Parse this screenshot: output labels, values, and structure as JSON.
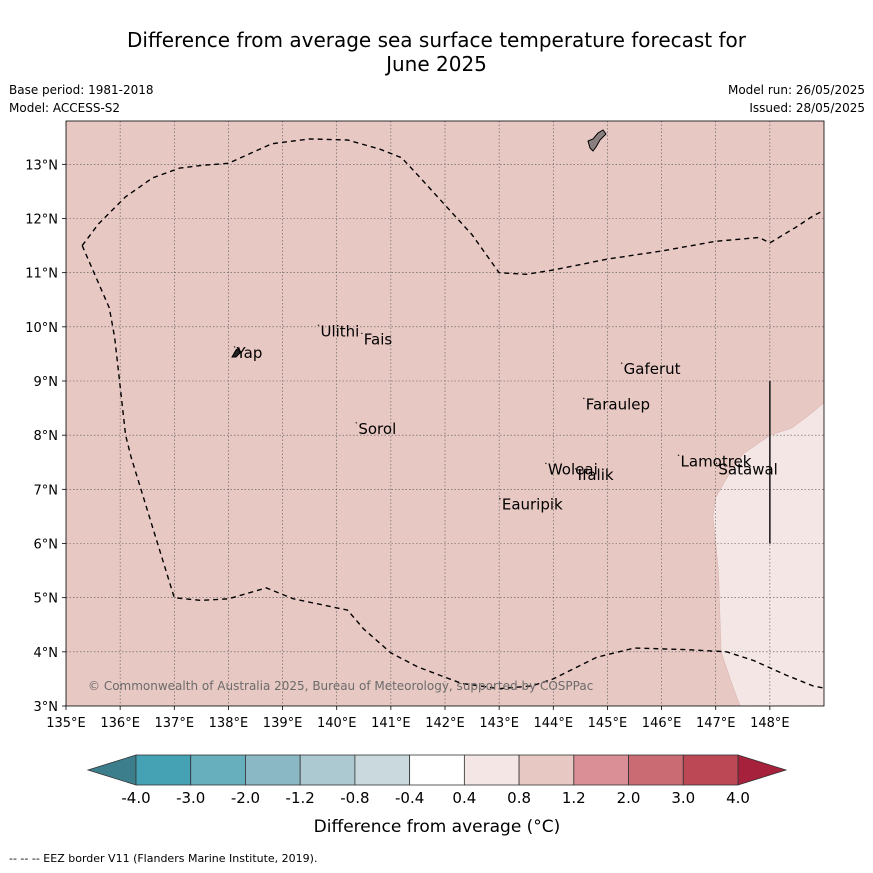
{
  "title_line1": "Difference from average sea surface temperature forecast for",
  "title_line2": "June 2025",
  "base_period": "Base period: 1981-2018",
  "model": "Model: ACCESS-S2",
  "model_run": "Model run: 26/05/2025",
  "issued": "Issued: 28/05/2025",
  "copyright": "© Commonwealth of Australia 2025, Bureau of Meteorology, supported by COSPPac",
  "footnote": "--  --  -- EEZ border V11 (Flanders Marine Institute, 2019).",
  "lon_ticks": [
    {
      "value": 135,
      "label": "135°E"
    },
    {
      "value": 136,
      "label": "136°E"
    },
    {
      "value": 137,
      "label": "137°E"
    },
    {
      "value": 138,
      "label": "138°E"
    },
    {
      "value": 139,
      "label": "139°E"
    },
    {
      "value": 140,
      "label": "140°E"
    },
    {
      "value": 141,
      "label": "141°E"
    },
    {
      "value": 142,
      "label": "142°E"
    },
    {
      "value": 143,
      "label": "143°E"
    },
    {
      "value": 144,
      "label": "144°E"
    },
    {
      "value": 145,
      "label": "145°E"
    },
    {
      "value": 146,
      "label": "146°E"
    },
    {
      "value": 147,
      "label": "147°E"
    },
    {
      "value": 148,
      "label": "148°E"
    }
  ],
  "lat_ticks": [
    {
      "value": 3,
      "label": "3°N"
    },
    {
      "value": 4,
      "label": "4°N"
    },
    {
      "value": 5,
      "label": "5°N"
    },
    {
      "value": 6,
      "label": "6°N"
    },
    {
      "value": 7,
      "label": "7°N"
    },
    {
      "value": 8,
      "label": "8°N"
    },
    {
      "value": 9,
      "label": "9°N"
    },
    {
      "value": 10,
      "label": "10°N"
    },
    {
      "value": 11,
      "label": "11°N"
    },
    {
      "value": 12,
      "label": "12°N"
    },
    {
      "value": 13,
      "label": "13°N"
    }
  ],
  "extent": {
    "lon_min": 135,
    "lon_max": 149,
    "lat_min": 3,
    "lat_max": 13.8
  },
  "colors": {
    "background_anomaly": "#e8c8c3",
    "east_anomaly": "#f4e6e4",
    "land": "#8a7f7f",
    "eez_line": "#000000",
    "grid": "#555555"
  },
  "islands": [
    {
      "name": "Yap",
      "lon": 138.15,
      "lat": 9.5
    },
    {
      "name": "Ulithi",
      "lon": 139.7,
      "lat": 9.9
    },
    {
      "name": "Fais",
      "lon": 140.5,
      "lat": 9.75
    },
    {
      "name": "Gaferut",
      "lon": 145.3,
      "lat": 9.2
    },
    {
      "name": "Faraulep",
      "lon": 144.6,
      "lat": 8.55
    },
    {
      "name": "Sorol",
      "lon": 140.4,
      "lat": 8.1
    },
    {
      "name": "Woleai",
      "lon": 143.9,
      "lat": 7.35
    },
    {
      "name": "Ifalik",
      "lon": 144.45,
      "lat": 7.25
    },
    {
      "name": "Lamotrek",
      "lon": 146.35,
      "lat": 7.5
    },
    {
      "name": "Satawal",
      "lon": 147.05,
      "lat": 7.35
    },
    {
      "name": "Eauripik",
      "lon": 143.05,
      "lat": 6.7
    }
  ],
  "eez_north": [
    [
      135.3,
      11.5
    ],
    [
      135.6,
      11.9
    ],
    [
      136.1,
      12.4
    ],
    [
      136.6,
      12.75
    ],
    [
      137.1,
      12.93
    ],
    [
      137.5,
      12.98
    ],
    [
      138.0,
      13.02
    ],
    [
      138.8,
      13.38
    ],
    [
      139.5,
      13.47
    ],
    [
      140.2,
      13.45
    ],
    [
      140.8,
      13.28
    ],
    [
      141.2,
      13.12
    ],
    [
      141.5,
      12.8
    ],
    [
      142.0,
      12.25
    ],
    [
      142.5,
      11.7
    ],
    [
      143.0,
      11.0
    ],
    [
      143.5,
      10.97
    ],
    [
      144.0,
      11.05
    ],
    [
      145.0,
      11.25
    ],
    [
      146.0,
      11.4
    ],
    [
      147.0,
      11.58
    ],
    [
      147.8,
      11.65
    ],
    [
      148.0,
      11.55
    ],
    [
      148.5,
      11.85
    ],
    [
      148.8,
      12.05
    ],
    [
      149.0,
      12.15
    ]
  ],
  "eez_west": [
    [
      135.3,
      11.5
    ],
    [
      135.8,
      10.35
    ],
    [
      135.9,
      9.8
    ],
    [
      136.1,
      8.0
    ],
    [
      136.2,
      7.6
    ],
    [
      136.6,
      6.3
    ],
    [
      137.0,
      5.0
    ],
    [
      137.5,
      4.95
    ],
    [
      138.0,
      4.98
    ],
    [
      138.7,
      5.18
    ],
    [
      139.2,
      4.98
    ],
    [
      140.2,
      4.77
    ],
    [
      140.5,
      4.42
    ],
    [
      141.0,
      3.98
    ],
    [
      141.5,
      3.72
    ],
    [
      142.3,
      3.42
    ],
    [
      143.0,
      3.32
    ],
    [
      143.6,
      3.37
    ],
    [
      144.0,
      3.5
    ],
    [
      144.8,
      3.9
    ],
    [
      145.5,
      4.07
    ],
    [
      146.5,
      4.04
    ],
    [
      147.2,
      4.0
    ],
    [
      147.7,
      3.84
    ],
    [
      148.3,
      3.57
    ],
    [
      148.8,
      3.37
    ],
    [
      149.0,
      3.33
    ]
  ],
  "warm_region_polygon": [
    [
      149.0,
      8.6
    ],
    [
      148.7,
      8.35
    ],
    [
      148.4,
      8.13
    ],
    [
      148.0,
      8.0
    ],
    [
      147.5,
      7.65
    ],
    [
      147.2,
      7.2
    ],
    [
      147.0,
      6.85
    ],
    [
      146.95,
      6.5
    ],
    [
      147.0,
      6.0
    ],
    [
      147.05,
      5.5
    ],
    [
      147.1,
      4.0
    ],
    [
      147.3,
      3.4
    ],
    [
      147.45,
      3.0
    ],
    [
      149.0,
      3.0
    ]
  ],
  "vertical_line": {
    "lon": 148.0,
    "lat_start": 6.0,
    "lat_end": 9.0
  },
  "colorbar": {
    "label": "Difference from average (°C)",
    "ticks": [
      "-4.0",
      "-3.0",
      "-2.0",
      "-1.2",
      "-0.8",
      "-0.4",
      "0.4",
      "0.8",
      "1.2",
      "2.0",
      "3.0",
      "4.0"
    ],
    "colors": [
      "#45a2b4",
      "#68afbe",
      "#8ab8c5",
      "#acc9d1",
      "#c9d9de",
      "#ffffff",
      "#f4e6e4",
      "#e8c8c3",
      "#d98f95",
      "#ca6b74",
      "#bc4755"
    ],
    "under_color": "#3d7e8c",
    "over_color": "#a6213b"
  }
}
